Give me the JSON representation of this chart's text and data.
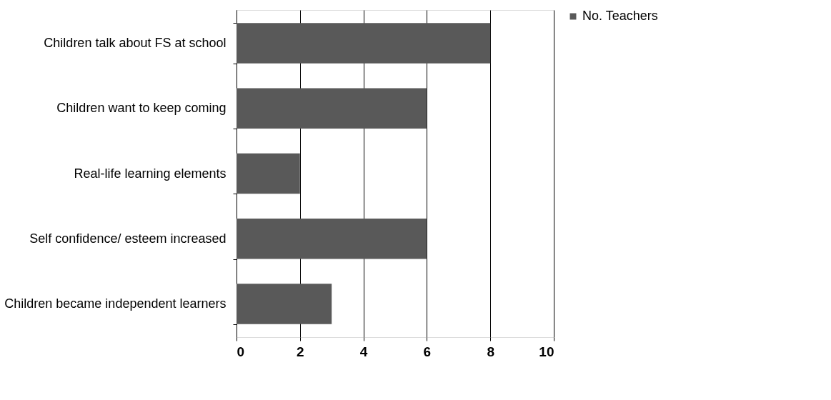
{
  "chart_data": {
    "type": "bar",
    "orientation": "horizontal",
    "categories": [
      "Children talk about FS at school",
      "Children want to keep coming",
      "Real-life learning elements",
      "Self confidence/ esteem increased",
      "Children became independent learners"
    ],
    "series": [
      {
        "name": "No. Teachers",
        "color": "#595959",
        "values": [
          8,
          6,
          2,
          6,
          3
        ]
      }
    ],
    "xlim": [
      0,
      10
    ],
    "xticks": [
      0,
      2,
      4,
      6,
      8,
      10
    ],
    "grid": "x",
    "legend": "right"
  }
}
